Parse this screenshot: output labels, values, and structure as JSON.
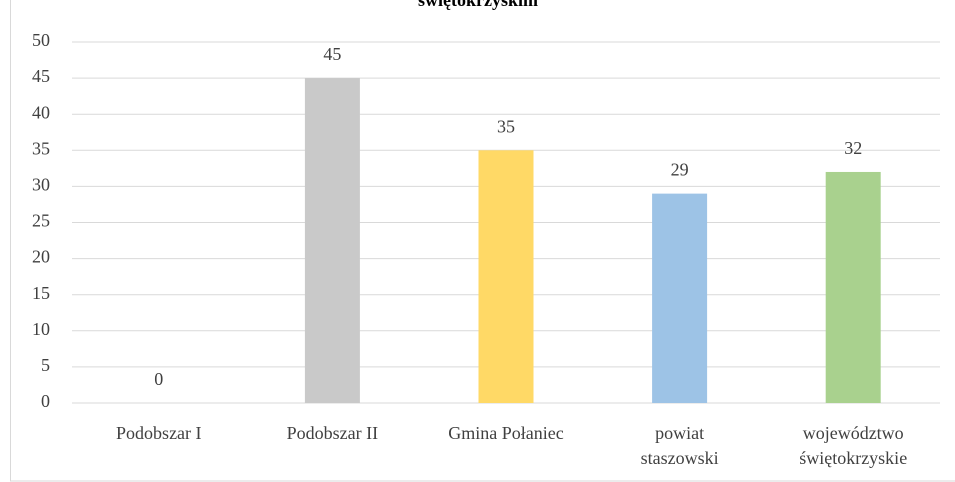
{
  "chart_data": {
    "type": "bar",
    "title": "świętokrzyskim",
    "categories": [
      "Podobszar I",
      "Podobszar II",
      "Gmina Połaniec",
      "powiat staszowski",
      "województwo świętokrzyskie"
    ],
    "values": [
      0,
      45,
      35,
      29,
      32
    ],
    "colors": [
      "#5b9bd5",
      "#c9c9c9",
      "#ffd966",
      "#9dc3e6",
      "#a9d18e"
    ],
    "ylim": [
      0,
      50
    ],
    "yticks": [
      0,
      5,
      10,
      15,
      20,
      25,
      30,
      35,
      40,
      45,
      50
    ],
    "grid": true
  }
}
